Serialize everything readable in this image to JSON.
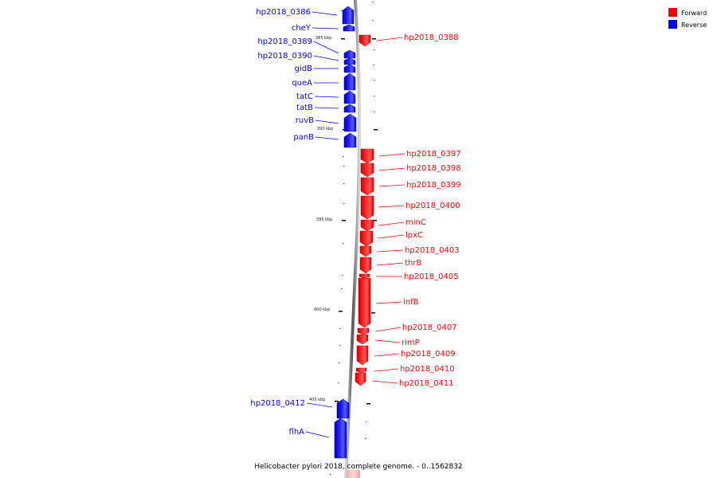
{
  "caption": "Helicobacter pylori 2018, complete genome. - 0..1562832",
  "legend": [
    {
      "label": "Forward",
      "color": "#ff0000"
    },
    {
      "label": "Reverse",
      "color": "#0000ff"
    }
  ],
  "ticks": [
    "385 kbp",
    "390 kbp",
    "395 kbp",
    "400 kbp",
    "405 kbp"
  ],
  "genes": [
    {
      "name": "hp2018_0386",
      "strand": "reverse"
    },
    {
      "name": "cheY",
      "strand": "reverse"
    },
    {
      "name": "hp2018_0388",
      "strand": "forward"
    },
    {
      "name": "hp2018_0389",
      "strand": "reverse"
    },
    {
      "name": "hp2018_0390",
      "strand": "reverse"
    },
    {
      "name": "gidB",
      "strand": "reverse"
    },
    {
      "name": "queA",
      "strand": "reverse"
    },
    {
      "name": "tatC",
      "strand": "reverse"
    },
    {
      "name": "tatB",
      "strand": "reverse"
    },
    {
      "name": "ruvB",
      "strand": "reverse"
    },
    {
      "name": "panB",
      "strand": "reverse"
    },
    {
      "name": "hp2018_0397",
      "strand": "forward"
    },
    {
      "name": "hp2018_0398",
      "strand": "forward"
    },
    {
      "name": "hp2018_0399",
      "strand": "forward"
    },
    {
      "name": "hp2018_0400",
      "strand": "forward"
    },
    {
      "name": "minC",
      "strand": "forward"
    },
    {
      "name": "lpxC",
      "strand": "forward"
    },
    {
      "name": "hp2018_0403",
      "strand": "forward"
    },
    {
      "name": "thrB",
      "strand": "forward"
    },
    {
      "name": "hp2018_0405",
      "strand": "forward"
    },
    {
      "name": "infB",
      "strand": "forward"
    },
    {
      "name": "hp2018_0407",
      "strand": "forward"
    },
    {
      "name": "rimP",
      "strand": "forward"
    },
    {
      "name": "hp2018_0409",
      "strand": "forward"
    },
    {
      "name": "hp2018_0410",
      "strand": "forward"
    },
    {
      "name": "hp2018_0411",
      "strand": "forward"
    },
    {
      "name": "hp2018_0412",
      "strand": "reverse"
    },
    {
      "name": "flhA",
      "strand": "reverse"
    }
  ]
}
